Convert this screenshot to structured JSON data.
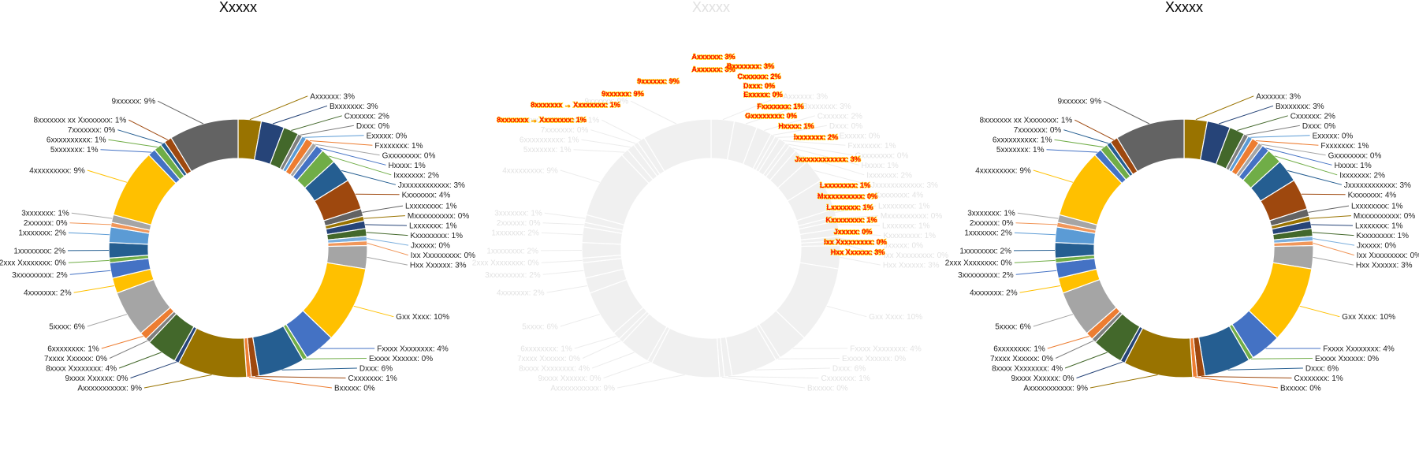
{
  "chart_data": [
    {
      "type": "pie",
      "variant": "donut",
      "title": "Xxxxx",
      "labels": [
        "Axxxxxx",
        "Bxxxxxxx",
        "Cxxxxxx",
        "Dxxx",
        "Exxxxx",
        "Fxxxxxxx",
        "Gxxxxxxxx",
        "Hxxxx",
        "Ixxxxxxx",
        "Jxxxxxxxxxxxx",
        "Kxxxxxxx",
        "Lxxxxxxxx",
        "Mxxxxxxxxxx",
        "Lxxxxxxx",
        "Kxxxxxxxx",
        "Jxxxxx",
        "Ixx Xxxxxxxxx",
        "Hxx Xxxxxx",
        "Gxx Xxxx",
        "Fxxxx Xxxxxxxx",
        "Exxxx Xxxxxx",
        "Dxxx",
        "Cxxxxxxx",
        "Bxxxxx",
        "Axxxxxxxxxxx",
        "9xxxx Xxxxxx",
        "8xxxx Xxxxxxxx",
        "7xxxx Xxxxxx",
        "6xxxxxxxx",
        "5xxxx",
        "4xxxxxxx",
        "3xxxxxxxxx",
        "2xxx Xxxxxxxx",
        "1xxxxxxxx",
        "1xxxxxxx",
        "2xxxxxx",
        "3xxxxxxx",
        "4xxxxxxxxx",
        "5xxxxxxx",
        "6xxxxxxxxxx",
        "7xxxxxxx",
        "8xxxxxxx xx Xxxxxxxx",
        "9xxxxxx"
      ],
      "values": [
        3,
        3,
        2,
        0,
        0,
        1,
        0,
        1,
        2,
        3,
        4,
        1,
        0,
        1,
        1,
        0,
        0,
        3,
        10,
        4,
        0,
        6,
        1,
        0,
        9,
        0,
        4,
        0,
        1,
        6,
        2,
        2,
        0,
        2,
        2,
        0,
        1,
        9,
        1,
        1,
        0,
        1,
        9
      ],
      "value_labels": [
        "Axxxxxx: 3%",
        "Bxxxxxxx: 3%",
        "Cxxxxxx: 2%",
        "Dxxx: 0%",
        "Exxxxx: 0%",
        "Fxxxxxxx: 1%",
        "Gxxxxxxxx: 0%",
        "Hxxxx: 1%",
        "Ixxxxxxx: 2%",
        "Jxxxxxxxxxxxx: 3%",
        "Kxxxxxxx: 4%",
        "Lxxxxxxxx: 1%",
        "Mxxxxxxxxxx: 0%",
        "Lxxxxxxx: 1%",
        "Kxxxxxxxx: 1%",
        "Jxxxxx: 0%",
        "Ixx Xxxxxxxxx: 0%",
        "Hxx Xxxxxx: 3%",
        "Gxx Xxxx: 10%",
        "Fxxxx Xxxxxxxx: 4%",
        "Exxxx Xxxxxx: 0%",
        "Dxxx: 6%",
        "Cxxxxxxx: 1%",
        "Bxxxxx: 0%",
        "Axxxxxxxxxxx: 9%",
        "9xxxx Xxxxxx: 0%",
        "8xxxx Xxxxxxxx: 4%",
        "7xxxx Xxxxxx: 0%",
        "6xxxxxxxx: 1%",
        "5xxxx: 6%",
        "4xxxxxxx: 2%",
        "3xxxxxxxxx: 2%",
        "2xxx Xxxxxxxx: 0%",
        "1xxxxxxxx: 2%",
        "1xxxxxxx: 2%",
        "2xxxxxx: 0%",
        "3xxxxxxx: 1%",
        "4xxxxxxxxx: 9%",
        "5xxxxxxx: 1%",
        "6xxxxxxxxxx: 1%",
        "7xxxxxxx: 0%",
        "8xxxxxxx xx Xxxxxxxx: 1%",
        "9xxxxxx: 9%"
      ],
      "colors": [
        "#997300",
        "#264478",
        "#43682b",
        "#7f7f7f",
        "#5b9bd5",
        "#ed7d31",
        "#a5a5a5",
        "#4472c4",
        "#70ad47",
        "#255e91",
        "#9e480e",
        "#636363",
        "#997300",
        "#264478",
        "#43682b",
        "#7cafdd",
        "#f1975a",
        "#a5a5a5",
        "#ffc000",
        "#4472c4",
        "#70ad47",
        "#255e91",
        "#9e480e",
        "#ed7d31",
        "#997300",
        "#264478",
        "#43682b",
        "#7f7f7f",
        "#ed7d31",
        "#a5a5a5",
        "#ffc000",
        "#4472c4",
        "#70ad47",
        "#255e91",
        "#5b9bd5",
        "#f1975a",
        "#a5a5a5",
        "#ffc000",
        "#4472c4",
        "#70ad47",
        "#255e91",
        "#9e480e",
        "#636363"
      ],
      "legend": "none"
    },
    {
      "type": "pie",
      "variant": "donut",
      "title": "Xxxxx",
      "appearance": "faded",
      "labels": [
        "Axxxxxx",
        "Bxxxxxxx",
        "Cxxxxxx",
        "Dxxx",
        "Exxxxx",
        "Fxxxxxxx",
        "Gxxxxxxxx",
        "Hxxxx",
        "Ixxxxxxx",
        "Jxxxxxxxxxxxx",
        "Kxxxxxxx",
        "Lxxxxxxxx",
        "Mxxxxxxxxxx",
        "Lxxxxxxx",
        "Kxxxxxxxx",
        "Jxxxxx",
        "Ixx Xxxxxxxxx",
        "Hxx Xxxxxx",
        "Gxx Xxxx",
        "Fxxxx Xxxxxxxx",
        "Exxxx Xxxxxx",
        "Dxxx",
        "Cxxxxxxx",
        "Bxxxxx",
        "Axxxxxxxxxxx",
        "9xxxx Xxxxxx",
        "8xxxx Xxxxxxxx",
        "7xxxx Xxxxxx",
        "6xxxxxxxx",
        "5xxxx",
        "4xxxxxxx",
        "3xxxxxxxxx",
        "2xxx Xxxxxxxx",
        "1xxxxxxxx",
        "1xxxxxxx",
        "2xxxxxx",
        "3xxxxxxx",
        "4xxxxxxxxx",
        "5xxxxxxx",
        "6xxxxxxxxxx",
        "7xxxxxxx",
        "8xxxxxxx xx Xxxxxxxx",
        "9xxxxxx"
      ],
      "values": [
        3,
        3,
        2,
        0,
        0,
        1,
        0,
        1,
        2,
        3,
        4,
        1,
        0,
        1,
        1,
        0,
        0,
        3,
        10,
        4,
        0,
        6,
        1,
        0,
        9,
        0,
        4,
        0,
        1,
        6,
        2,
        2,
        0,
        2,
        2,
        0,
        1,
        9,
        1,
        1,
        0,
        1,
        9
      ],
      "value_labels": [
        "Axxxxxx: 3%",
        "Bxxxxxxx: 3%",
        "Cxxxxxx: 2%",
        "Dxxx: 0%",
        "Exxxxx: 0%",
        "Fxxxxxxx: 1%",
        "Gxxxxxxxx: 0%",
        "Hxxxx: 1%",
        "Ixxxxxxx: 2%",
        "Jxxxxxxxxxxxx: 3%",
        "Kxxxxxxx: 4%",
        "Lxxxxxxxx: 1%",
        "Mxxxxxxxxxx: 0%",
        "Lxxxxxxx: 1%",
        "Kxxxxxxxx: 1%",
        "Jxxxxx: 0%",
        "Ixx Xxxxxxxxx: 0%",
        "Hxx Xxxxxx: 3%",
        "Gxx Xxxx: 10%",
        "Fxxxx Xxxxxxxx: 4%",
        "Exxxx Xxxxxx: 0%",
        "Dxxx: 6%",
        "Cxxxxxxx: 1%",
        "Bxxxxx: 0%",
        "Axxxxxxxxxxx: 9%",
        "9xxxx Xxxxxx: 0%",
        "8xxxx Xxxxxxxx: 4%",
        "7xxxx Xxxxxx: 0%",
        "6xxxxxxxx: 1%",
        "5xxxx: 6%",
        "4xxxxxxx: 2%",
        "3xxxxxxxxx: 2%",
        "2xxx Xxxxxxxx: 0%",
        "1xxxxxxxx: 2%",
        "1xxxxxxx: 2%",
        "2xxxxxx: 0%",
        "3xxxxxxx: 1%",
        "4xxxxxxxxx: 9%",
        "5xxxxxxx: 1%",
        "6xxxxxxxxxx: 1%",
        "7xxxxxxx: 0%",
        "8xxxxxxx xx Xxxxxxxx: 1%",
        "9xxxxxx: 9%"
      ],
      "overlay_labels": [
        "Axxxxxx: 3%",
        "Axxxxxx: 3%",
        "Bxxxxxxx: 3%",
        "Cxxxxxx: 2%",
        "Dxxx: 0%",
        "Exxxxx: 0%",
        "9xxxxxx: 9%",
        "9xxxxxx: 9%",
        "8xxxxxxx → Xxxxxxxx: 1%",
        "8xxxxxxx → Xxxxxxxx: 1%",
        "Fxxxxxxx: 1%",
        "Gxxxxxxxx: 0%",
        "Hxxxx: 1%",
        "Ixxxxxxx: 2%",
        "Jxxxxxxxxxxxx: 3%",
        "Lxxxxxxxx: 1%",
        "Mxxxxxxxxxx: 0%",
        "Lxxxxxxx: 1%",
        "Kxxxxxxxx: 1%",
        "Jxxxxx: 0%",
        "Ixx Xxxxxxxxx: 0%",
        "Hxx Xxxxxx: 3%"
      ],
      "colors": [
        "#f0f0f0"
      ],
      "overlay_colors": {
        "text": "#ff0000",
        "outline": "#ffd700"
      },
      "legend": "none"
    },
    {
      "type": "pie",
      "variant": "donut",
      "title": "Xxxxx",
      "labels": [
        "Axxxxxx",
        "Bxxxxxxx",
        "Cxxxxxx",
        "Dxxx",
        "Exxxxx",
        "Fxxxxxxx",
        "Gxxxxxxxx",
        "Hxxxx",
        "Ixxxxxxx",
        "Jxxxxxxxxxxxx",
        "Kxxxxxxx",
        "Lxxxxxxxx",
        "Mxxxxxxxxxx",
        "Lxxxxxxx",
        "Kxxxxxxxx",
        "Jxxxxx",
        "Ixx Xxxxxxxxx",
        "Hxx Xxxxxx",
        "Gxx Xxxx",
        "Fxxxx Xxxxxxxx",
        "Exxxx Xxxxxx",
        "Dxxx",
        "Cxxxxxxx",
        "Bxxxxx",
        "Axxxxxxxxxxx",
        "9xxxx Xxxxxx",
        "8xxxx Xxxxxxxx",
        "7xxxx Xxxxxx",
        "6xxxxxxxx",
        "5xxxx",
        "4xxxxxxx",
        "3xxxxxxxxx",
        "2xxx Xxxxxxxx",
        "1xxxxxxxx",
        "1xxxxxxx",
        "2xxxxxx",
        "3xxxxxxx",
        "4xxxxxxxxx",
        "5xxxxxxx",
        "6xxxxxxxxxx",
        "7xxxxxxx",
        "8xxxxxxx xx Xxxxxxxx",
        "9xxxxxx"
      ],
      "values": [
        3,
        3,
        2,
        0,
        0,
        1,
        0,
        1,
        2,
        3,
        4,
        1,
        0,
        1,
        1,
        0,
        0,
        3,
        10,
        4,
        0,
        6,
        1,
        0,
        9,
        0,
        4,
        0,
        1,
        6,
        2,
        2,
        0,
        2,
        2,
        0,
        1,
        9,
        1,
        1,
        0,
        1,
        9
      ],
      "value_labels": [
        "Axxxxxx: 3%",
        "Bxxxxxxx: 3%",
        "Cxxxxxx: 2%",
        "Dxxx: 0%",
        "Exxxxx: 0%",
        "Fxxxxxxx: 1%",
        "Gxxxxxxxx: 0%",
        "Hxxxx: 1%",
        "Ixxxxxxx: 2%",
        "Jxxxxxxxxxxxx: 3%",
        "Kxxxxxxx: 4%",
        "Lxxxxxxxx: 1%",
        "Mxxxxxxxxxx: 0%",
        "Lxxxxxxx: 1%",
        "Kxxxxxxxx: 1%",
        "Jxxxxx: 0%",
        "Ixx Xxxxxxxxx: 0%",
        "Hxx Xxxxxx: 3%",
        "Gxx Xxxx: 10%",
        "Fxxxx Xxxxxxxx: 4%",
        "Exxxx Xxxxxx: 0%",
        "Dxxx: 6%",
        "Cxxxxxxx: 1%",
        "Bxxxxx: 0%",
        "Axxxxxxxxxxx: 9%",
        "9xxxx Xxxxxx: 0%",
        "8xxxx Xxxxxxxx: 4%",
        "7xxxx Xxxxxx: 0%",
        "6xxxxxxxx: 1%",
        "5xxxx: 6%",
        "4xxxxxxx: 2%",
        "3xxxxxxxxx: 2%",
        "2xxx Xxxxxxxx: 0%",
        "1xxxxxxxx: 2%",
        "1xxxxxxx: 2%",
        "2xxxxxx: 0%",
        "3xxxxxxx: 1%",
        "4xxxxxxxxx: 9%",
        "5xxxxxxx: 1%",
        "6xxxxxxxxxx: 1%",
        "7xxxxxxx: 0%",
        "8xxxxxxx xx Xxxxxxxx: 1%",
        "9xxxxxx: 9%"
      ],
      "colors": [
        "#997300",
        "#264478",
        "#43682b",
        "#7f7f7f",
        "#5b9bd5",
        "#ed7d31",
        "#a5a5a5",
        "#4472c4",
        "#70ad47",
        "#255e91",
        "#9e480e",
        "#636363",
        "#997300",
        "#264478",
        "#43682b",
        "#7cafdd",
        "#f1975a",
        "#a5a5a5",
        "#ffc000",
        "#4472c4",
        "#70ad47",
        "#255e91",
        "#9e480e",
        "#ed7d31",
        "#997300",
        "#264478",
        "#43682b",
        "#7f7f7f",
        "#ed7d31",
        "#a5a5a5",
        "#ffc000",
        "#4472c4",
        "#70ad47",
        "#255e91",
        "#5b9bd5",
        "#f1975a",
        "#a5a5a5",
        "#ffc000",
        "#4472c4",
        "#70ad47",
        "#255e91",
        "#9e480e",
        "#636363"
      ],
      "legend": "none"
    }
  ]
}
